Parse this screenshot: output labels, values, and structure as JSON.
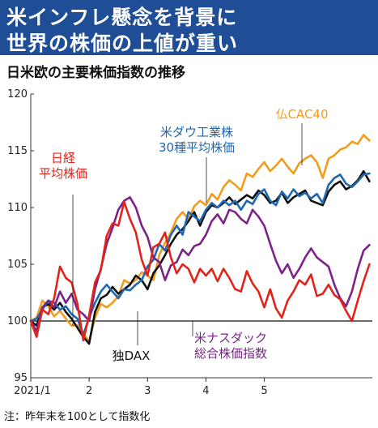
{
  "header": {
    "title_line1": "米インフレ懸念を背景に",
    "title_line2": "世界の株価の上値が重い",
    "subtitle": "日米欧の主要株価指数の推移",
    "footnote": "注：昨年末を100として指数化",
    "bg_color": "#1f4e96"
  },
  "chart_data": {
    "type": "line",
    "title": "日米欧の主要株価指数の推移",
    "xlabel": "",
    "ylabel": "",
    "ylim": [
      95,
      120
    ],
    "yticks": [
      95,
      100,
      105,
      110,
      115,
      120
    ],
    "xlim": [
      0,
      5.85
    ],
    "xticks": [
      {
        "value": 0,
        "label": "2021/1"
      },
      {
        "value": 1,
        "label": "2"
      },
      {
        "value": 2,
        "label": "3"
      },
      {
        "value": 3,
        "label": "4"
      },
      {
        "value": 4,
        "label": "5"
      }
    ],
    "grid": false,
    "baseline": 100,
    "series": [
      {
        "name": "日経平均株価",
        "label_lines": [
          "日経",
          "平均株価"
        ],
        "color": "#e2231a",
        "points": [
          [
            0,
            100
          ],
          [
            0.1,
            98.6
          ],
          [
            0.2,
            101.0
          ],
          [
            0.3,
            100.6
          ],
          [
            0.4,
            102.0
          ],
          [
            0.5,
            104.8
          ],
          [
            0.6,
            103.8
          ],
          [
            0.7,
            103.4
          ],
          [
            0.8,
            101.5
          ],
          [
            0.9,
            98.3
          ],
          [
            1.0,
            100.5
          ],
          [
            1.1,
            103.4
          ],
          [
            1.2,
            104.5
          ],
          [
            1.3,
            107.5
          ],
          [
            1.4,
            108.6
          ],
          [
            1.5,
            108.4
          ],
          [
            1.6,
            110.5
          ],
          [
            1.7,
            109.0
          ],
          [
            1.8,
            107.8
          ],
          [
            1.9,
            105.4
          ],
          [
            2.0,
            104.0
          ],
          [
            2.1,
            106.5
          ],
          [
            2.2,
            106.8
          ],
          [
            2.3,
            107.8
          ],
          [
            2.4,
            105.6
          ],
          [
            2.5,
            104.2
          ],
          [
            2.6,
            105.0
          ],
          [
            2.7,
            104.6
          ],
          [
            2.8,
            103.4
          ],
          [
            2.9,
            104.6
          ],
          [
            3.0,
            104.0
          ],
          [
            3.1,
            104.6
          ],
          [
            3.2,
            103.5
          ],
          [
            3.3,
            104.6
          ],
          [
            3.4,
            103.8
          ],
          [
            3.5,
            102.8
          ],
          [
            3.6,
            102.6
          ],
          [
            3.7,
            104.4
          ],
          [
            3.8,
            103.3
          ],
          [
            3.9,
            102.6
          ],
          [
            4.0,
            101.2
          ],
          [
            4.1,
            102.8
          ],
          [
            4.2,
            101.1
          ],
          [
            4.3,
            100.3
          ],
          [
            4.4,
            101.8
          ],
          [
            4.5,
            102.6
          ],
          [
            4.6,
            103.6
          ],
          [
            4.7,
            103.2
          ],
          [
            4.8,
            104.1
          ],
          [
            4.9,
            102.2
          ],
          [
            5.0,
            102.4
          ],
          [
            5.1,
            103.2
          ],
          [
            5.2,
            102.3
          ],
          [
            5.3,
            101.9
          ],
          [
            5.4,
            100.9
          ],
          [
            5.5,
            100.0
          ],
          [
            5.6,
            101.8
          ],
          [
            5.7,
            103.5
          ],
          [
            5.8,
            105.0
          ]
        ]
      },
      {
        "name": "米ダウ工業株30種平均株価",
        "label_lines": [
          "米ダウ工業株",
          "30種平均株価"
        ],
        "color": "#1f68b1",
        "points": [
          [
            0,
            100
          ],
          [
            0.1,
            100.2
          ],
          [
            0.2,
            101.0
          ],
          [
            0.3,
            101.8
          ],
          [
            0.4,
            101.6
          ],
          [
            0.5,
            101.0
          ],
          [
            0.6,
            101.3
          ],
          [
            0.7,
            100.6
          ],
          [
            0.8,
            100.2
          ],
          [
            0.9,
            98.8
          ],
          [
            1.0,
            100.3
          ],
          [
            1.1,
            101.6
          ],
          [
            1.2,
            102.6
          ],
          [
            1.3,
            103.2
          ],
          [
            1.4,
            102.6
          ],
          [
            1.5,
            102.0
          ],
          [
            1.6,
            102.8
          ],
          [
            1.7,
            102.7
          ],
          [
            1.8,
            103.2
          ],
          [
            1.9,
            103.6
          ],
          [
            2.0,
            104.8
          ],
          [
            2.1,
            105.4
          ],
          [
            2.2,
            106.8
          ],
          [
            2.3,
            106.2
          ],
          [
            2.4,
            107.6
          ],
          [
            2.5,
            108.4
          ],
          [
            2.6,
            107.6
          ],
          [
            2.7,
            109.6
          ],
          [
            2.8,
            109.2
          ],
          [
            2.9,
            108.8
          ],
          [
            3.0,
            109.8
          ],
          [
            3.1,
            110.4
          ],
          [
            3.2,
            110.0
          ],
          [
            3.3,
            110.6
          ],
          [
            3.4,
            110.2
          ],
          [
            3.5,
            110.6
          ],
          [
            3.6,
            109.8
          ],
          [
            3.7,
            110.6
          ],
          [
            3.8,
            110.3
          ],
          [
            3.9,
            111.2
          ],
          [
            4.0,
            111.6
          ],
          [
            4.1,
            110.6
          ],
          [
            4.2,
            110.2
          ],
          [
            4.3,
            111.4
          ],
          [
            4.4,
            110.8
          ],
          [
            4.5,
            111.6
          ],
          [
            4.6,
            111.0
          ],
          [
            4.7,
            111.3
          ],
          [
            4.8,
            110.8
          ],
          [
            4.9,
            111.2
          ],
          [
            5.0,
            110.4
          ],
          [
            5.1,
            112.0
          ],
          [
            5.2,
            112.6
          ],
          [
            5.3,
            112.9
          ],
          [
            5.4,
            112.1
          ],
          [
            5.5,
            111.8
          ],
          [
            5.6,
            112.3
          ],
          [
            5.7,
            112.9
          ],
          [
            5.8,
            113.0
          ]
        ]
      },
      {
        "name": "仏CAC40",
        "label_lines": [
          "仏CAC40"
        ],
        "color": "#f39c1b",
        "points": [
          [
            0,
            100
          ],
          [
            0.1,
            100.3
          ],
          [
            0.2,
            101.8
          ],
          [
            0.3,
            101.3
          ],
          [
            0.4,
            100.4
          ],
          [
            0.5,
            100.9
          ],
          [
            0.6,
            100.2
          ],
          [
            0.7,
            99.6
          ],
          [
            0.8,
            99.6
          ],
          [
            0.9,
            98.9
          ],
          [
            1.0,
            98.2
          ],
          [
            1.1,
            100.3
          ],
          [
            1.2,
            101.5
          ],
          [
            1.3,
            101.2
          ],
          [
            1.4,
            101.6
          ],
          [
            1.5,
            102.2
          ],
          [
            1.6,
            103.6
          ],
          [
            1.7,
            103.3
          ],
          [
            1.8,
            103.6
          ],
          [
            1.9,
            104.3
          ],
          [
            2.0,
            104.0
          ],
          [
            2.1,
            103.6
          ],
          [
            2.2,
            105.8
          ],
          [
            2.3,
            106.9
          ],
          [
            2.4,
            107.8
          ],
          [
            2.5,
            109.0
          ],
          [
            2.6,
            109.6
          ],
          [
            2.7,
            109.0
          ],
          [
            2.8,
            110.1
          ],
          [
            2.9,
            110.6
          ],
          [
            3.0,
            110.2
          ],
          [
            3.1,
            111.2
          ],
          [
            3.2,
            110.7
          ],
          [
            3.3,
            111.8
          ],
          [
            3.4,
            112.4
          ],
          [
            3.5,
            112.0
          ],
          [
            3.6,
            111.5
          ],
          [
            3.7,
            113.0
          ],
          [
            3.8,
            112.7
          ],
          [
            3.9,
            113.4
          ],
          [
            4.0,
            114.0
          ],
          [
            4.1,
            113.2
          ],
          [
            4.2,
            113.7
          ],
          [
            4.3,
            114.3
          ],
          [
            4.4,
            113.6
          ],
          [
            4.5,
            113.0
          ],
          [
            4.6,
            113.9
          ],
          [
            4.7,
            114.3
          ],
          [
            4.8,
            114.6
          ],
          [
            4.9,
            114.0
          ],
          [
            5.0,
            112.6
          ],
          [
            5.1,
            114.3
          ],
          [
            5.2,
            114.6
          ],
          [
            5.3,
            115.1
          ],
          [
            5.4,
            115.3
          ],
          [
            5.5,
            115.8
          ],
          [
            5.6,
            115.6
          ],
          [
            5.7,
            116.4
          ],
          [
            5.8,
            115.9
          ]
        ]
      },
      {
        "name": "独DAX",
        "label_lines": [
          "独DAX"
        ],
        "color": "#111111",
        "points": [
          [
            0,
            100
          ],
          [
            0.1,
            99.6
          ],
          [
            0.2,
            101.2
          ],
          [
            0.3,
            101.5
          ],
          [
            0.4,
            101.0
          ],
          [
            0.5,
            101.6
          ],
          [
            0.6,
            100.8
          ],
          [
            0.7,
            100.2
          ],
          [
            0.8,
            99.4
          ],
          [
            0.9,
            98.6
          ],
          [
            1.0,
            98.0
          ],
          [
            1.1,
            100.8
          ],
          [
            1.2,
            102.0
          ],
          [
            1.3,
            102.3
          ],
          [
            1.4,
            103.0
          ],
          [
            1.5,
            102.4
          ],
          [
            1.6,
            102.8
          ],
          [
            1.7,
            103.2
          ],
          [
            1.8,
            104.0
          ],
          [
            1.9,
            103.6
          ],
          [
            2.0,
            102.8
          ],
          [
            2.1,
            104.2
          ],
          [
            2.2,
            104.9
          ],
          [
            2.3,
            105.8
          ],
          [
            2.4,
            106.8
          ],
          [
            2.5,
            107.6
          ],
          [
            2.6,
            108.1
          ],
          [
            2.7,
            108.8
          ],
          [
            2.8,
            109.6
          ],
          [
            2.9,
            108.4
          ],
          [
            3.0,
            109.6
          ],
          [
            3.1,
            110.2
          ],
          [
            3.2,
            110.0
          ],
          [
            3.3,
            110.4
          ],
          [
            3.4,
            110.9
          ],
          [
            3.5,
            110.3
          ],
          [
            3.6,
            110.7
          ],
          [
            3.7,
            111.1
          ],
          [
            3.8,
            110.8
          ],
          [
            3.9,
            111.5
          ],
          [
            4.0,
            111.1
          ],
          [
            4.1,
            110.4
          ],
          [
            4.2,
            110.6
          ],
          [
            4.3,
            111.3
          ],
          [
            4.4,
            110.4
          ],
          [
            4.5,
            110.9
          ],
          [
            4.6,
            111.2
          ],
          [
            4.7,
            111.5
          ],
          [
            4.8,
            110.6
          ],
          [
            4.9,
            110.4
          ],
          [
            5.0,
            110.2
          ],
          [
            5.1,
            111.4
          ],
          [
            5.2,
            112.0
          ],
          [
            5.3,
            112.3
          ],
          [
            5.4,
            111.6
          ],
          [
            5.5,
            111.9
          ],
          [
            5.6,
            112.4
          ],
          [
            5.7,
            113.2
          ],
          [
            5.8,
            112.3
          ]
        ]
      },
      {
        "name": "米ナスダック総合株価指数",
        "label_lines": [
          "米ナスダック",
          "総合株価指数"
        ],
        "color": "#7b2389",
        "points": [
          [
            0,
            100
          ],
          [
            0.1,
            99.1
          ],
          [
            0.2,
            101.2
          ],
          [
            0.3,
            101.8
          ],
          [
            0.4,
            101.2
          ],
          [
            0.5,
            102.6
          ],
          [
            0.6,
            101.6
          ],
          [
            0.7,
            102.4
          ],
          [
            0.8,
            101.0
          ],
          [
            0.9,
            100.6
          ],
          [
            1.0,
            100.0
          ],
          [
            1.1,
            102.8
          ],
          [
            1.2,
            104.6
          ],
          [
            1.3,
            106.8
          ],
          [
            1.4,
            108.2
          ],
          [
            1.5,
            109.8
          ],
          [
            1.6,
            110.6
          ],
          [
            1.7,
            110.9
          ],
          [
            1.8,
            110.0
          ],
          [
            1.9,
            108.4
          ],
          [
            2.0,
            107.4
          ],
          [
            2.1,
            105.6
          ],
          [
            2.2,
            105.2
          ],
          [
            2.3,
            103.6
          ],
          [
            2.4,
            104.9
          ],
          [
            2.5,
            105.2
          ],
          [
            2.6,
            106.3
          ],
          [
            2.7,
            105.8
          ],
          [
            2.8,
            106.6
          ],
          [
            2.9,
            106.8
          ],
          [
            3.0,
            107.6
          ],
          [
            3.1,
            108.8
          ],
          [
            3.2,
            109.4
          ],
          [
            3.3,
            108.6
          ],
          [
            3.4,
            109.8
          ],
          [
            3.5,
            109.6
          ],
          [
            3.6,
            109.0
          ],
          [
            3.7,
            108.6
          ],
          [
            3.8,
            109.8
          ],
          [
            3.9,
            109.2
          ],
          [
            4.0,
            108.4
          ],
          [
            4.1,
            106.8
          ],
          [
            4.2,
            105.3
          ],
          [
            4.3,
            104.2
          ],
          [
            4.4,
            105.0
          ],
          [
            4.5,
            103.8
          ],
          [
            4.6,
            104.6
          ],
          [
            4.7,
            105.6
          ],
          [
            4.8,
            106.4
          ],
          [
            4.9,
            105.6
          ],
          [
            5.0,
            105.2
          ],
          [
            5.1,
            104.8
          ],
          [
            5.2,
            103.2
          ],
          [
            5.3,
            102.0
          ],
          [
            5.4,
            101.3
          ],
          [
            5.5,
            102.6
          ],
          [
            5.6,
            104.6
          ],
          [
            5.7,
            106.2
          ],
          [
            5.8,
            106.7
          ]
        ]
      }
    ],
    "annotations": [
      {
        "series_index": 0,
        "color": "#e2231a"
      },
      {
        "series_index": 1,
        "color": "#1f68b1"
      },
      {
        "series_index": 2,
        "color": "#f39c1b"
      },
      {
        "series_index": 3,
        "color": "#111111"
      },
      {
        "series_index": 4,
        "color": "#7b2389"
      }
    ]
  }
}
